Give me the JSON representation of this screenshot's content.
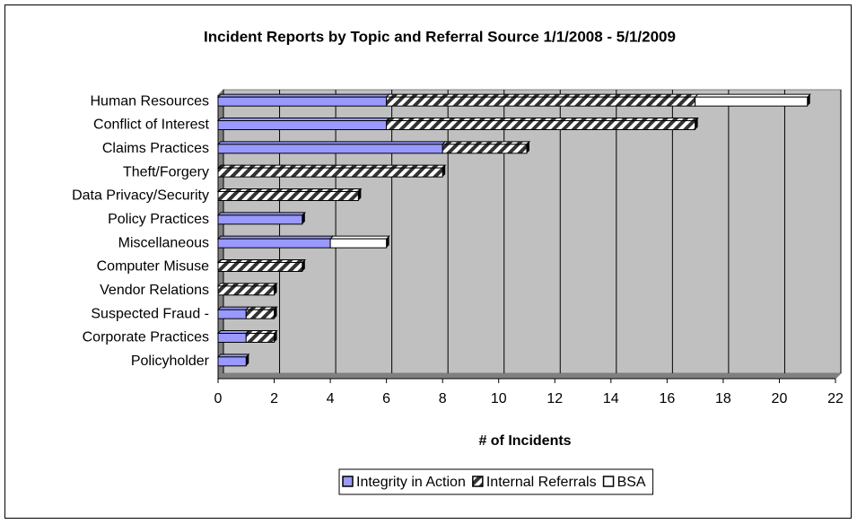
{
  "chart_data": {
    "type": "stacked_barh",
    "title": "Incident Reports by Topic and Referral Source 1/1/2008 - 5/1/2009",
    "x_label": "# of Incidents",
    "categories": [
      "Human Resources",
      "Conflict of Interest",
      "Claims Practices",
      "Theft/Forgery",
      "Data Privacy/Security",
      "Policy Practices",
      "Miscellaneous",
      "Computer Misuse",
      "Vendor Relations",
      "Suspected Fraud -",
      "Corporate Practices",
      "Policyholder"
    ],
    "series": [
      {
        "name": "Integrity in Action",
        "color": "#9999ff",
        "values": [
          6,
          6,
          8,
          0,
          0,
          3,
          4,
          0,
          0,
          1,
          1,
          1
        ]
      },
      {
        "name": "Internal Referrals",
        "color": "#ffffff",
        "fill_pattern": "diagonal-hatch",
        "values": [
          11,
          11,
          3,
          8,
          5,
          0,
          0,
          3,
          2,
          1,
          1,
          0
        ]
      },
      {
        "name": "BSA",
        "color": "#ffffff",
        "values": [
          4,
          0,
          0,
          0,
          0,
          0,
          2,
          0,
          0,
          0,
          0,
          0
        ]
      }
    ],
    "xlim": [
      0,
      22
    ],
    "xticks": [
      0,
      2,
      4,
      6,
      8,
      10,
      12,
      14,
      16,
      18,
      20,
      22
    ],
    "grid": true,
    "legend": "bottom",
    "plot_background": "#c0c0c0"
  }
}
